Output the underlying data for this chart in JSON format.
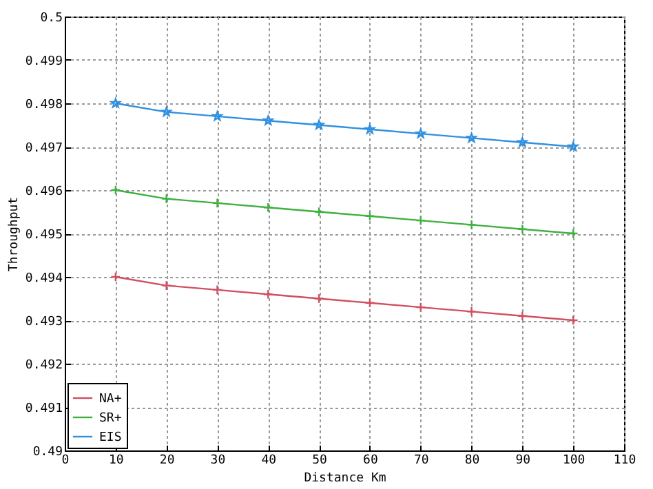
{
  "chart_data": {
    "type": "line",
    "xlabel": "Distance Km",
    "ylabel": "Throughput",
    "x": [
      10,
      20,
      30,
      40,
      50,
      60,
      70,
      80,
      90,
      100
    ],
    "series": [
      {
        "name": "NA+",
        "color": "#d05060",
        "marker": "cross",
        "values": [
          0.494,
          0.4938,
          0.4937,
          0.4936,
          0.4935,
          0.4934,
          0.4933,
          0.4932,
          0.4931,
          0.493
        ]
      },
      {
        "name": "SR+",
        "color": "#40b040",
        "marker": "cross",
        "values": [
          0.496,
          0.4958,
          0.4957,
          0.4956,
          0.4955,
          0.4954,
          0.4953,
          0.4952,
          0.4951,
          0.495
        ]
      },
      {
        "name": "EIS",
        "color": "#3090e0",
        "marker": "star",
        "values": [
          0.498,
          0.4978,
          0.4977,
          0.4976,
          0.4975,
          0.4974,
          0.4973,
          0.4972,
          0.4971,
          0.497
        ]
      }
    ],
    "xlim": [
      0,
      110
    ],
    "xticks": [
      0,
      10,
      20,
      30,
      40,
      50,
      60,
      70,
      80,
      90,
      100,
      110
    ],
    "ylim": [
      0.49,
      0.5
    ],
    "yticks": [
      0.49,
      0.491,
      0.492,
      0.493,
      0.494,
      0.495,
      0.496,
      0.497,
      0.498,
      0.499,
      0.5
    ],
    "grid": true,
    "legend": "bottom left",
    "line_style": "solid"
  }
}
